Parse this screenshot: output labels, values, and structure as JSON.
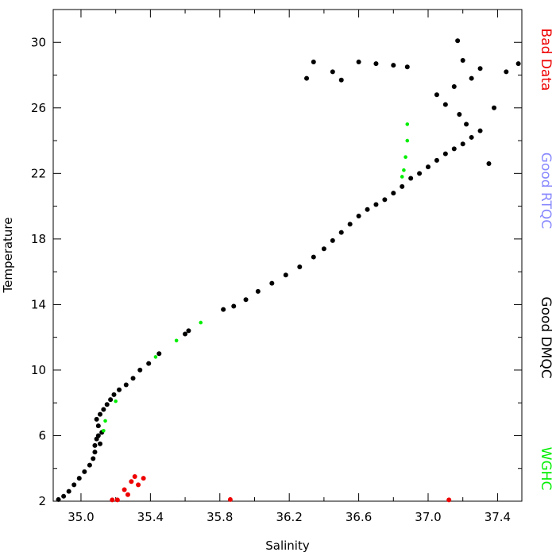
{
  "chart_data": {
    "type": "scatter",
    "title": "",
    "xlabel": "Salinity",
    "ylabel": "Temperature",
    "xlim": [
      34.84,
      37.54
    ],
    "ylim": [
      2.0,
      32.0
    ],
    "xticks": [
      "35.0",
      "35.4",
      "35.8",
      "36.2",
      "36.6",
      "37.0",
      "37.4"
    ],
    "yticks": [
      "2",
      "6",
      "10",
      "14",
      "18",
      "22",
      "26",
      "30"
    ],
    "grid": false,
    "legend_position": "right-vertical",
    "series": [
      {
        "name": "Good DMQC",
        "color": "#000000",
        "points": [
          [
            34.87,
            2.1
          ],
          [
            34.9,
            2.3
          ],
          [
            34.93,
            2.6
          ],
          [
            34.96,
            3.0
          ],
          [
            34.99,
            3.4
          ],
          [
            35.02,
            3.8
          ],
          [
            35.05,
            4.2
          ],
          [
            35.07,
            4.6
          ],
          [
            35.08,
            5.0
          ],
          [
            35.08,
            5.4
          ],
          [
            35.09,
            5.8
          ],
          [
            35.1,
            6.0
          ],
          [
            35.11,
            5.5
          ],
          [
            35.12,
            6.2
          ],
          [
            35.1,
            6.6
          ],
          [
            35.09,
            7.0
          ],
          [
            35.11,
            7.3
          ],
          [
            35.13,
            7.6
          ],
          [
            35.15,
            7.9
          ],
          [
            35.17,
            8.2
          ],
          [
            35.19,
            8.5
          ],
          [
            35.22,
            8.8
          ],
          [
            35.26,
            9.1
          ],
          [
            35.3,
            9.5
          ],
          [
            35.34,
            10.0
          ],
          [
            35.39,
            10.4
          ],
          [
            35.45,
            11.0
          ],
          [
            35.6,
            12.2
          ],
          [
            35.62,
            12.4
          ],
          [
            35.82,
            13.7
          ],
          [
            35.88,
            13.9
          ],
          [
            35.95,
            14.3
          ],
          [
            36.02,
            14.8
          ],
          [
            36.1,
            15.3
          ],
          [
            36.18,
            15.8
          ],
          [
            36.26,
            16.3
          ],
          [
            36.34,
            16.9
          ],
          [
            36.4,
            17.4
          ],
          [
            36.45,
            17.9
          ],
          [
            36.5,
            18.4
          ],
          [
            36.55,
            18.9
          ],
          [
            36.6,
            19.4
          ],
          [
            36.65,
            19.8
          ],
          [
            36.7,
            20.1
          ],
          [
            36.75,
            20.4
          ],
          [
            36.8,
            20.8
          ],
          [
            36.85,
            21.2
          ],
          [
            36.9,
            21.7
          ],
          [
            36.95,
            22.0
          ],
          [
            37.0,
            22.4
          ],
          [
            37.05,
            22.8
          ],
          [
            37.1,
            23.2
          ],
          [
            37.15,
            23.5
          ],
          [
            37.2,
            23.8
          ],
          [
            37.25,
            24.2
          ],
          [
            37.3,
            24.6
          ],
          [
            37.22,
            25.0
          ],
          [
            37.18,
            25.6
          ],
          [
            37.1,
            26.2
          ],
          [
            37.05,
            26.8
          ],
          [
            37.15,
            27.3
          ],
          [
            37.25,
            27.8
          ],
          [
            37.3,
            28.4
          ],
          [
            37.2,
            28.9
          ],
          [
            37.17,
            30.1
          ],
          [
            37.45,
            28.2
          ],
          [
            37.38,
            26.0
          ],
          [
            37.35,
            22.6
          ],
          [
            36.34,
            28.8
          ],
          [
            36.45,
            28.2
          ],
          [
            36.5,
            27.7
          ],
          [
            36.6,
            28.8
          ],
          [
            36.7,
            28.7
          ],
          [
            36.8,
            28.6
          ],
          [
            36.88,
            28.5
          ],
          [
            36.3,
            27.8
          ],
          [
            37.52,
            28.7
          ]
        ]
      },
      {
        "name": "WGHC",
        "color": "#00ee00",
        "points": [
          [
            35.13,
            6.3
          ],
          [
            35.14,
            6.9
          ],
          [
            35.2,
            8.1
          ],
          [
            35.43,
            10.8
          ],
          [
            35.55,
            11.8
          ],
          [
            35.69,
            12.9
          ],
          [
            36.88,
            25.0
          ],
          [
            36.88,
            24.0
          ],
          [
            36.87,
            23.0
          ],
          [
            36.86,
            22.2
          ],
          [
            36.85,
            21.8
          ]
        ]
      },
      {
        "name": "Good RTQC",
        "color": "#8888ff",
        "points": []
      },
      {
        "name": "Bad Data",
        "color": "#ee0000",
        "points": [
          [
            35.18,
            2.08
          ],
          [
            35.21,
            2.08
          ],
          [
            35.25,
            2.7
          ],
          [
            35.27,
            2.4
          ],
          [
            35.29,
            3.2
          ],
          [
            35.31,
            3.5
          ],
          [
            35.33,
            3.0
          ],
          [
            35.36,
            3.4
          ],
          [
            35.86,
            2.1
          ],
          [
            37.12,
            2.08
          ]
        ]
      }
    ]
  }
}
